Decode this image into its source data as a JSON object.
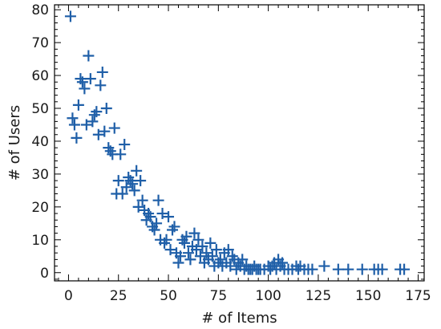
{
  "chart_data": {
    "type": "scatter",
    "xlabel": "# of Items",
    "ylabel": "# of Users",
    "xlim": [
      -7,
      178
    ],
    "ylim": [
      -2.5,
      81.5
    ],
    "xticks": [
      0,
      25,
      50,
      75,
      100,
      125,
      150,
      175
    ],
    "yticks": [
      0,
      10,
      20,
      30,
      40,
      50,
      60,
      70,
      80
    ],
    "x_minor_step": 5,
    "y_minor_step": 2,
    "grid": false,
    "legend": "none",
    "marker": "plus",
    "color": "#1f5fa8",
    "series": [
      {
        "points": [
          [
            1,
            78
          ],
          [
            2,
            47
          ],
          [
            3,
            45
          ],
          [
            4,
            41
          ],
          [
            5,
            51
          ],
          [
            6,
            59
          ],
          [
            7,
            58
          ],
          [
            8,
            56
          ],
          [
            9,
            45
          ],
          [
            10,
            66
          ],
          [
            11,
            59
          ],
          [
            12,
            46
          ],
          [
            13,
            48
          ],
          [
            14,
            49
          ],
          [
            15,
            42
          ],
          [
            16,
            57
          ],
          [
            17,
            61
          ],
          [
            18,
            43
          ],
          [
            19,
            50
          ],
          [
            20,
            38
          ],
          [
            21,
            37
          ],
          [
            22,
            36
          ],
          [
            23,
            44
          ],
          [
            24,
            24
          ],
          [
            25,
            28
          ],
          [
            26,
            36
          ],
          [
            27,
            24
          ],
          [
            28,
            39
          ],
          [
            29,
            26
          ],
          [
            30,
            29
          ],
          [
            31,
            28
          ],
          [
            32,
            27
          ],
          [
            33,
            25
          ],
          [
            34,
            31
          ],
          [
            35,
            20
          ],
          [
            36,
            28
          ],
          [
            37,
            22
          ],
          [
            38,
            19
          ],
          [
            39,
            16
          ],
          [
            40,
            18
          ],
          [
            41,
            17
          ],
          [
            42,
            14
          ],
          [
            43,
            13
          ],
          [
            44,
            15
          ],
          [
            45,
            22
          ],
          [
            46,
            10
          ],
          [
            47,
            18
          ],
          [
            48,
            9
          ],
          [
            49,
            10
          ],
          [
            50,
            17
          ],
          [
            51,
            7
          ],
          [
            52,
            13
          ],
          [
            53,
            14
          ],
          [
            54,
            6
          ],
          [
            55,
            3
          ],
          [
            56,
            5
          ],
          [
            57,
            10
          ],
          [
            58,
            9
          ],
          [
            59,
            11
          ],
          [
            60,
            6
          ],
          [
            61,
            4
          ],
          [
            62,
            8
          ],
          [
            63,
            12
          ],
          [
            64,
            7
          ],
          [
            65,
            10
          ],
          [
            66,
            5
          ],
          [
            67,
            8
          ],
          [
            68,
            3
          ],
          [
            69,
            6
          ],
          [
            70,
            4
          ],
          [
            71,
            9
          ],
          [
            72,
            5
          ],
          [
            73,
            2
          ],
          [
            74,
            7
          ],
          [
            75,
            3
          ],
          [
            76,
            4
          ],
          [
            77,
            2
          ],
          [
            78,
            6
          ],
          [
            79,
            3
          ],
          [
            80,
            7
          ],
          [
            81,
            2
          ],
          [
            82,
            5
          ],
          [
            83,
            4
          ],
          [
            84,
            1
          ],
          [
            85,
            3
          ],
          [
            86,
            2
          ],
          [
            87,
            4
          ],
          [
            88,
            1
          ],
          [
            89,
            2
          ],
          [
            90,
            1
          ],
          [
            91,
            1
          ],
          [
            92,
            1
          ],
          [
            93,
            2
          ],
          [
            94,
            1
          ],
          [
            95,
            1
          ],
          [
            96,
            1
          ],
          [
            98,
            1
          ],
          [
            100,
            2
          ],
          [
            101,
            1
          ],
          [
            102,
            2
          ],
          [
            103,
            3
          ],
          [
            104,
            1
          ],
          [
            105,
            4
          ],
          [
            106,
            2
          ],
          [
            107,
            3
          ],
          [
            108,
            1
          ],
          [
            110,
            1
          ],
          [
            112,
            1
          ],
          [
            114,
            2
          ],
          [
            115,
            1
          ],
          [
            116,
            2
          ],
          [
            118,
            1
          ],
          [
            120,
            1
          ],
          [
            122,
            1
          ],
          [
            128,
            2
          ],
          [
            135,
            1
          ],
          [
            140,
            1
          ],
          [
            147,
            1
          ],
          [
            153,
            1
          ],
          [
            155,
            1
          ],
          [
            157,
            1
          ],
          [
            166,
            1
          ],
          [
            168,
            1
          ]
        ]
      }
    ]
  }
}
